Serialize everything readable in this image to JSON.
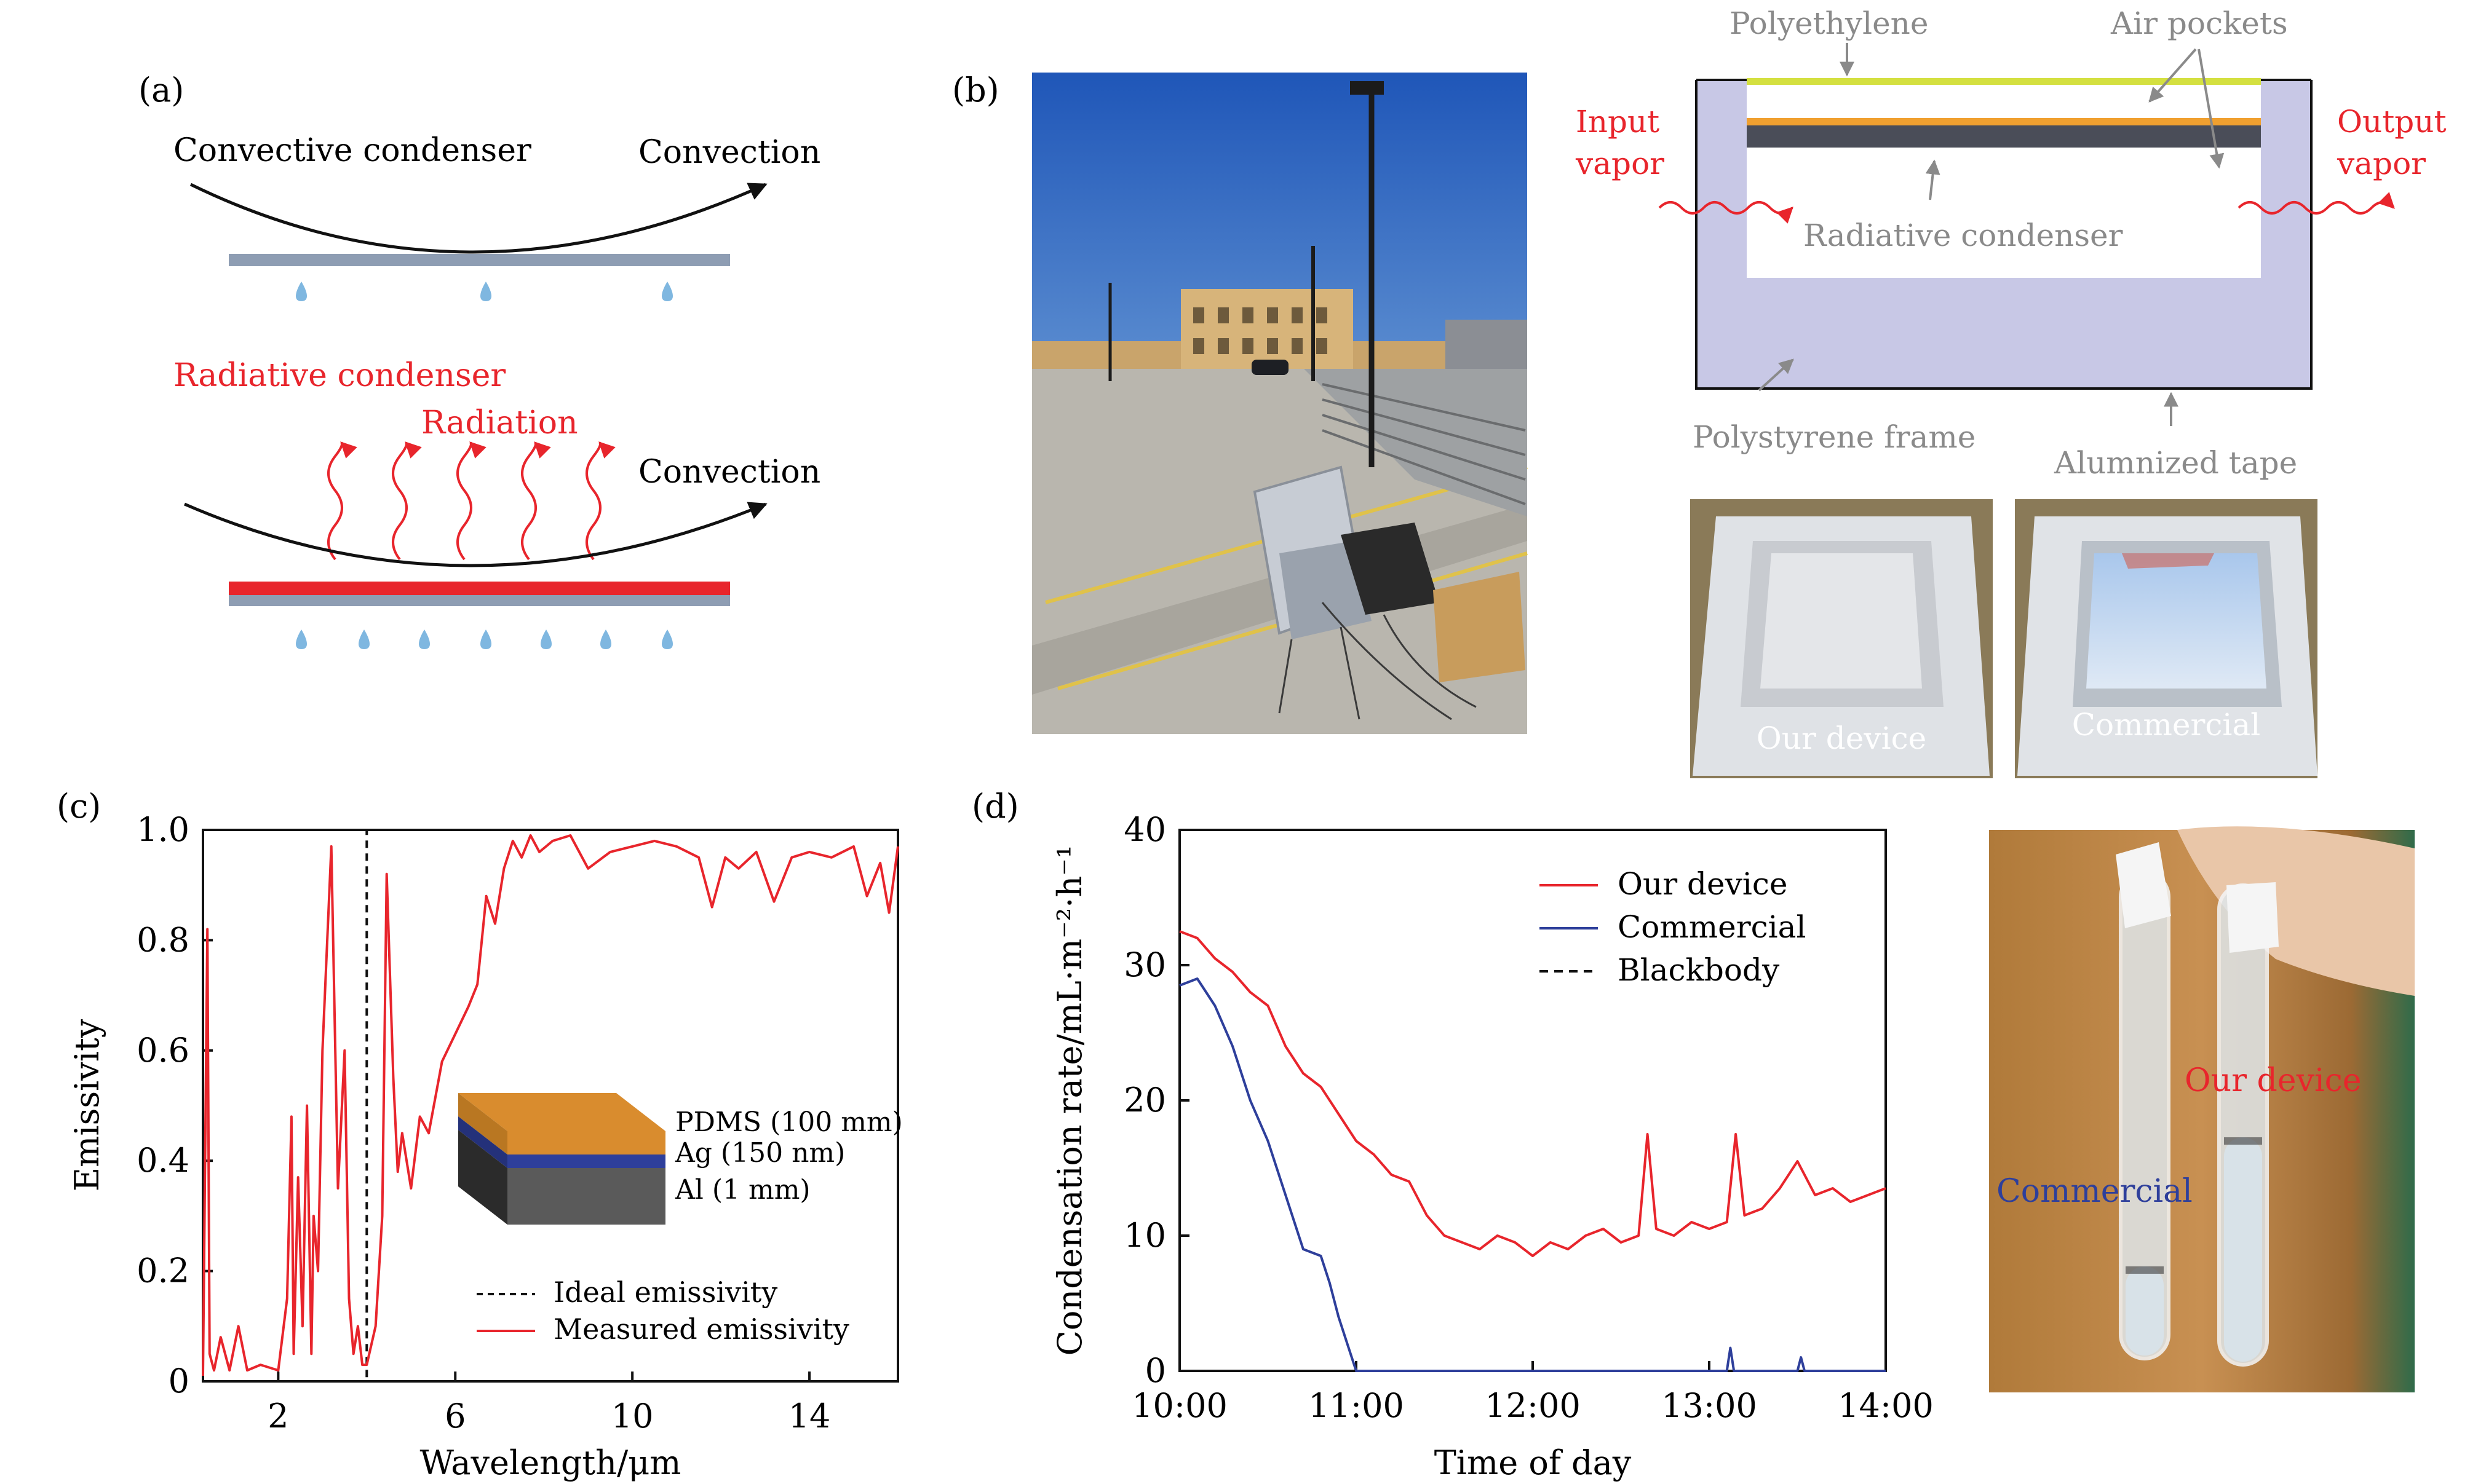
{
  "panel_labels": {
    "a": "(a)",
    "b": "(b)",
    "c": "(c)",
    "d": "(d)"
  },
  "panel_a": {
    "convective_condenser": "Convective condenser",
    "convection_top": "Convection",
    "radiative_condenser": "Radiative condenser",
    "radiation": "Radiation",
    "convection_bottom": "Convection",
    "colors": {
      "radiative": "#e8252c",
      "condenser_plate": "#8e9db3",
      "droplet": "#7fb7e0"
    }
  },
  "panel_b": {
    "diagram": {
      "polyethylene": "Polyethylene",
      "air_pockets": "Air pockets",
      "input_vapor_line1": "Input",
      "input_vapor_line2": "vapor",
      "output_vapor_line1": "Output",
      "output_vapor_line2": "vapor",
      "radiative_condenser": "Radiative condenser",
      "polystyrene_frame": "Polystyrene frame",
      "aluminized_tape": "Alumnized tape",
      "colors": {
        "frame": "#c8c8e6",
        "polyethylene": "#d4e040",
        "orange_layer": "#f0a030",
        "dark_layer": "#4a4d58",
        "vapor": "#e8252c",
        "annotation": "#8a8a8a"
      }
    },
    "photos": {
      "our_device": "Our device",
      "commercial": "Commercial"
    }
  },
  "panel_c": {
    "inset": {
      "pdms": "PDMS (100 mm)",
      "ag": "Ag (150 nm)",
      "al": "Al (1 mm)"
    }
  },
  "panel_d": {
    "tubes": {
      "our_device": "Our device",
      "commercial": "Commercial"
    }
  },
  "chart_data": [
    {
      "type": "line",
      "xlabel": "Wavelength/μm",
      "ylabel": "Emissivity",
      "xlim": [
        0.3,
        16
      ],
      "ylim": [
        0,
        1.0
      ],
      "xticks": [
        2,
        6,
        10,
        14
      ],
      "yticks": [
        0,
        0.2,
        0.4,
        0.6,
        0.8,
        1.0
      ],
      "ytick_labels": [
        "0",
        "0.2",
        "0.4",
        "0.6",
        "0.8",
        "1.0"
      ],
      "legend_position": "bottom-right",
      "grid": false,
      "series": [
        {
          "name": "Ideal emissivity",
          "style": "dashed",
          "color": "#111111",
          "x": [
            0.3,
            4.0,
            4.0,
            16
          ],
          "y": [
            0,
            0,
            1.0,
            1.0
          ]
        },
        {
          "name": "Measured emissivity",
          "style": "solid",
          "color": "#e8252c",
          "x": [
            0.3,
            0.4,
            0.45,
            0.55,
            0.7,
            0.9,
            1.1,
            1.3,
            1.6,
            2.0,
            2.2,
            2.3,
            2.35,
            2.45,
            2.55,
            2.65,
            2.75,
            2.8,
            2.9,
            3.0,
            3.2,
            3.35,
            3.5,
            3.6,
            3.7,
            3.8,
            3.9,
            4.0,
            4.2,
            4.35,
            4.45,
            4.6,
            4.7,
            4.8,
            5.0,
            5.2,
            5.4,
            5.7,
            6.0,
            6.3,
            6.5,
            6.7,
            6.9,
            7.1,
            7.3,
            7.5,
            7.7,
            7.9,
            8.2,
            8.6,
            9.0,
            9.5,
            10.0,
            10.5,
            11.0,
            11.5,
            11.8,
            12.1,
            12.4,
            12.8,
            13.2,
            13.6,
            14.0,
            14.5,
            15.0,
            15.3,
            15.6,
            15.8,
            16.0
          ],
          "y": [
            0.01,
            0.82,
            0.05,
            0.02,
            0.08,
            0.02,
            0.1,
            0.02,
            0.03,
            0.02,
            0.15,
            0.48,
            0.05,
            0.37,
            0.1,
            0.5,
            0.05,
            0.3,
            0.2,
            0.6,
            0.97,
            0.35,
            0.6,
            0.15,
            0.05,
            0.1,
            0.03,
            0.03,
            0.1,
            0.3,
            0.92,
            0.55,
            0.38,
            0.45,
            0.35,
            0.48,
            0.45,
            0.58,
            0.63,
            0.68,
            0.72,
            0.88,
            0.83,
            0.93,
            0.98,
            0.95,
            0.99,
            0.96,
            0.98,
            0.99,
            0.93,
            0.96,
            0.97,
            0.98,
            0.97,
            0.95,
            0.86,
            0.95,
            0.93,
            0.96,
            0.87,
            0.95,
            0.96,
            0.95,
            0.97,
            0.88,
            0.94,
            0.85,
            0.97
          ]
        }
      ]
    },
    {
      "type": "line",
      "xlabel": "Time of day",
      "ylabel": "Condensation rate/mL·m⁻²·h⁻¹",
      "x_unit": "hours",
      "xlim": [
        10,
        14
      ],
      "ylim": [
        0,
        40
      ],
      "xticks": [
        10,
        11,
        12,
        13,
        14
      ],
      "xtick_labels": [
        "10:00",
        "11:00",
        "12:00",
        "13:00",
        "14:00"
      ],
      "yticks": [
        0,
        10,
        20,
        30,
        40
      ],
      "legend_position": "top-center",
      "grid": false,
      "series": [
        {
          "name": "Our device",
          "style": "solid",
          "color": "#e8252c",
          "x": [
            10.0,
            10.1,
            10.2,
            10.3,
            10.4,
            10.5,
            10.6,
            10.7,
            10.8,
            10.9,
            11.0,
            11.1,
            11.2,
            11.3,
            11.4,
            11.5,
            11.6,
            11.7,
            11.8,
            11.9,
            12.0,
            12.1,
            12.2,
            12.3,
            12.4,
            12.5,
            12.6,
            12.65,
            12.7,
            12.8,
            12.9,
            13.0,
            13.1,
            13.15,
            13.2,
            13.3,
            13.4,
            13.5,
            13.6,
            13.7,
            13.8,
            13.9,
            14.0
          ],
          "y": [
            32.5,
            32.0,
            30.5,
            29.5,
            28.0,
            27.0,
            24.0,
            22.0,
            21.0,
            19.0,
            17.0,
            16.0,
            14.5,
            14.0,
            11.5,
            10.0,
            9.5,
            9.0,
            10.0,
            9.5,
            8.5,
            9.5,
            9.0,
            10.0,
            10.5,
            9.5,
            10.0,
            17.5,
            10.5,
            10.0,
            11.0,
            10.5,
            11.0,
            17.5,
            11.5,
            12.0,
            13.5,
            15.5,
            13.0,
            13.5,
            12.5,
            13.0,
            13.5
          ]
        },
        {
          "name": "Commercial",
          "style": "solid",
          "color": "#2e3f9b",
          "x": [
            10.0,
            10.1,
            10.2,
            10.3,
            10.4,
            10.5,
            10.6,
            10.7,
            10.8,
            10.85,
            10.9,
            10.95,
            11.0,
            11.5,
            12.0,
            12.5,
            13.0,
            13.1,
            13.12,
            13.14,
            13.3,
            13.5,
            13.52,
            13.54,
            13.7,
            14.0
          ],
          "y": [
            28.5,
            29.0,
            27.0,
            24.0,
            20.0,
            17.0,
            13.0,
            9.0,
            8.5,
            6.5,
            4.0,
            2.0,
            0.0,
            0.0,
            0.0,
            0.0,
            0.0,
            0.0,
            1.7,
            0.0,
            0.0,
            0.0,
            1.0,
            0.0,
            0.0,
            0.0
          ]
        },
        {
          "name": "Blackbody",
          "style": "dashed",
          "color": "#111111",
          "x": [
            10.0,
            11.0
          ],
          "y": [
            0,
            0
          ]
        }
      ]
    }
  ]
}
